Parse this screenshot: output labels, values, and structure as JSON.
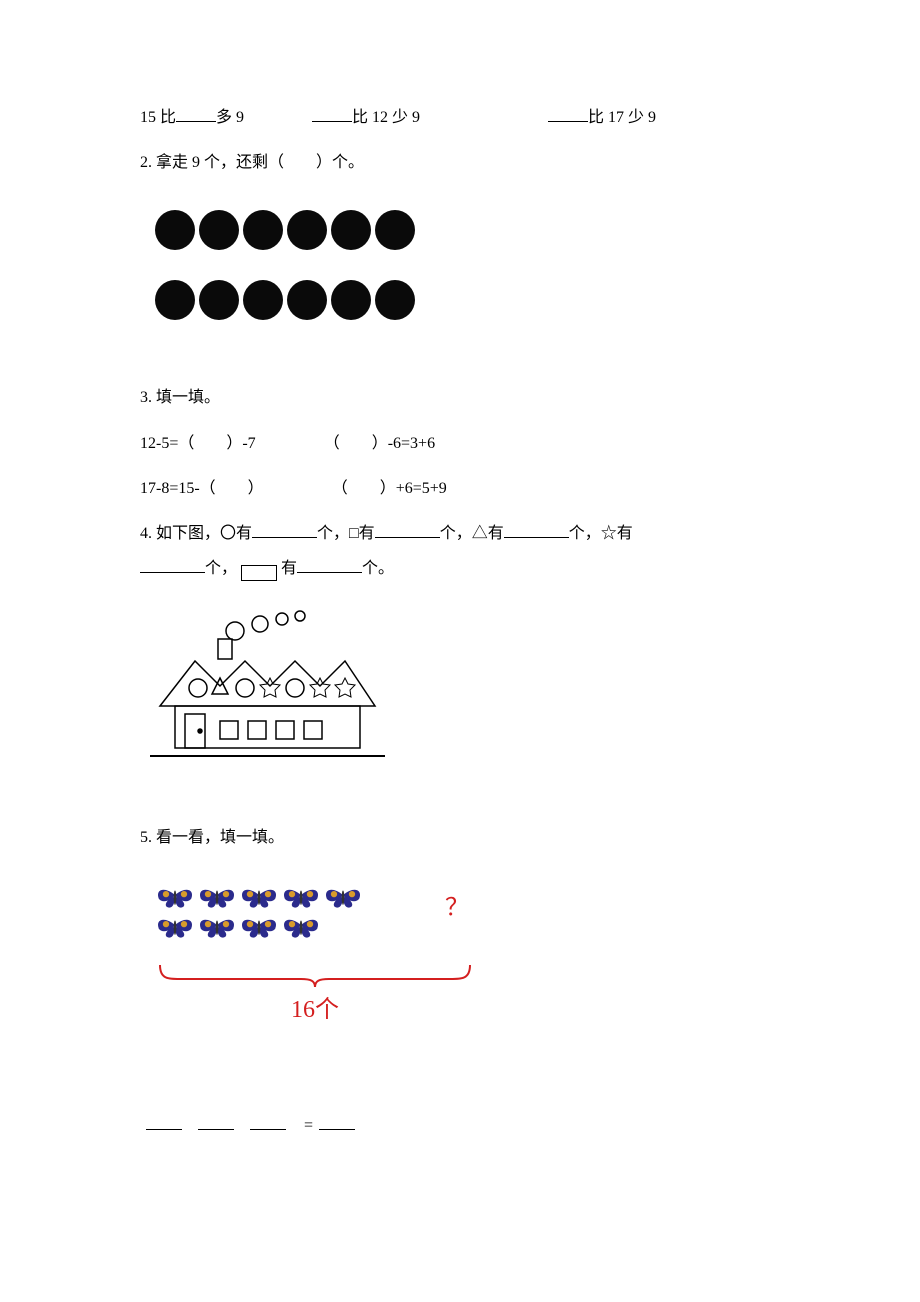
{
  "q1": {
    "part1_a": "15 比",
    "part1_b": "多 9",
    "part2_b": "比 12 少 9",
    "part3_b": "比 17 少 9"
  },
  "q2": {
    "label": "2. 拿走 9 个，还剩（　　）个。",
    "dots": {
      "row1": 6,
      "row2": 6,
      "color": "#0a0a0a",
      "radius": 20,
      "spacing": 44
    }
  },
  "q3": {
    "label": "3. 填一填。",
    "eq1a": "12-5=（　　）-7",
    "eq1b": "（　　）-6=3+6",
    "eq2a": "17-8=15-（　　）",
    "eq2b": "（　　）+6=5+9"
  },
  "q4": {
    "prefix": "4. 如下图，〇有",
    "mid1": "个，□有",
    "mid2": "个，△有",
    "mid3": "个，☆有",
    "mid4": "个，",
    "mid5": "有",
    "suffix": "个。",
    "house": {
      "color": "#000000"
    }
  },
  "q5": {
    "label": "5. 看一看，填一填。",
    "butterflies": {
      "row1": 5,
      "row2": 4,
      "wing_outer": "#2b2b8c",
      "wing_inner": "#d89b2b",
      "body": "#333333"
    },
    "qmark": "？",
    "qmark_color": "#d41f1f",
    "brace_color": "#d41f1f",
    "total_label": "16个",
    "total_color": "#d41f1f",
    "eq_equals": "="
  }
}
